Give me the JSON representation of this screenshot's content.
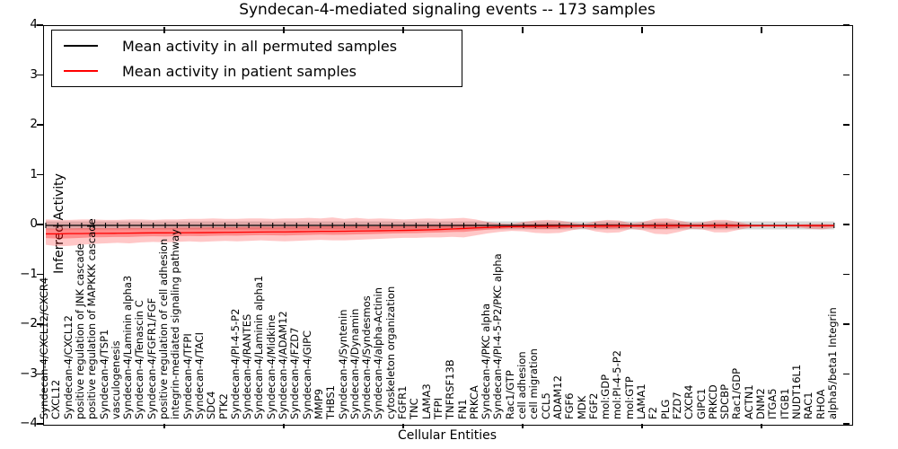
{
  "figure": {
    "title": "Syndecan-4-mediated signaling events -- 173 samples",
    "xlabel": "Cellular Entities",
    "ylabel": "Inferred Activity"
  },
  "legend": {
    "entries": [
      {
        "label": "Mean activity in all permuted samples",
        "color": "#000000"
      },
      {
        "label": "Mean activity in patient samples",
        "color": "#ff0000"
      }
    ]
  },
  "chart_data": {
    "type": "line",
    "title": "Syndecan-4-mediated signaling events -- 173 samples",
    "xlabel": "Cellular Entities",
    "ylabel": "Inferred Activity",
    "ylim": [
      -4,
      4
    ],
    "yticks": [
      {
        "value": 4,
        "label": "4"
      },
      {
        "value": 3,
        "label": "3"
      },
      {
        "value": 2,
        "label": "2"
      },
      {
        "value": 1,
        "label": "1"
      },
      {
        "value": 0,
        "label": "0"
      },
      {
        "value": -1,
        "label": "−1"
      },
      {
        "value": -2,
        "label": "−2"
      },
      {
        "value": -3,
        "label": "−3"
      },
      {
        "value": -4,
        "label": "−4"
      }
    ],
    "xtick_major_indices": [
      10,
      20,
      30,
      40,
      50,
      60
    ],
    "grid": false,
    "legend_position": "upper left",
    "categories": [
      "Syndecan-4/CXCL12/CXCR4",
      "CXCL12",
      "Syndecan-4/CXCL12",
      "positive regulation of JNK cascade",
      "positive regulation of MAPKKK cascade",
      "Syndecan-4/TSP1",
      "vasculogenesis",
      "Syndecan-4/Laminin alpha3",
      "Syndecan-4/Tenascin C",
      "Syndecan-4/FGFR1/FGF",
      "positive regulation of cell adhesion",
      "integrin-mediated signaling pathway",
      "Syndecan-4/TFPI",
      "Syndecan-4/TACI",
      "SDC4",
      "PTK2",
      "Syndecan-4/PI-4-5-P2",
      "Syndecan-4/RANTES",
      "Syndecan-4/Laminin alpha1",
      "Syndecan-4/Midkine",
      "Syndecan-4/ADAM12",
      "Syndecan-4/FZD7",
      "Syndecan-4/GIPC",
      "MMP9",
      "THBS1",
      "Syndecan-4/Syntenin",
      "Syndecan-4/Dynamin",
      "Syndecan-4/Syndesmos",
      "Syndecan-4/alpha-Actinin",
      "cytoskeleton organization",
      "FGFR1",
      "TNC",
      "LAMA3",
      "TFPI",
      "TNFRSF13B",
      "FN1",
      "PRKCA",
      "Syndecan-4/PKC alpha",
      "Syndecan-4/PI-4-5-P2/PKC alpha",
      "Rac1/GTP",
      "cell adhesion",
      "cell migration",
      "CCL5",
      "ADAM12",
      "FGF6",
      "MDK",
      "FGF2",
      "mol:GDP",
      "mol:PI-4-5-P2",
      "mol:GTP",
      "LAMA1",
      "F2",
      "PLG",
      "FZD7",
      "CXCR4",
      "GIPC1",
      "PRKCD",
      "SDCBP",
      "Rac1/GDP",
      "ACTN1",
      "DNM2",
      "ITGA5",
      "ITGB1",
      "NUDT16L1",
      "RAC1",
      "RHOA",
      "alpha5/beta1 Integrin"
    ],
    "series": [
      {
        "name": "Mean activity in all permuted samples",
        "color": "#000000",
        "constant_value": 0,
        "marker": "vertical-dash",
        "band": {
          "upper_constant": 0.08,
          "lower_constant": -0.08,
          "color": "#999999",
          "alpha": 0.38
        }
      },
      {
        "name": "Mean activity in patient samples",
        "color": "#ff0000",
        "values": [
          -0.17,
          -0.17,
          -0.165,
          -0.165,
          -0.16,
          -0.16,
          -0.158,
          -0.155,
          -0.152,
          -0.15,
          -0.15,
          -0.148,
          -0.147,
          -0.145,
          -0.143,
          -0.14,
          -0.138,
          -0.135,
          -0.133,
          -0.13,
          -0.13,
          -0.127,
          -0.124,
          -0.12,
          -0.12,
          -0.117,
          -0.113,
          -0.11,
          -0.107,
          -0.103,
          -0.1,
          -0.096,
          -0.09,
          -0.082,
          -0.072,
          -0.062,
          -0.05,
          -0.04,
          -0.03,
          -0.025,
          -0.02,
          -0.02,
          -0.018,
          -0.016,
          -0.014,
          -0.012,
          -0.012,
          -0.012,
          -0.01,
          -0.01,
          -0.009,
          -0.009,
          -0.008,
          -0.008,
          -0.007,
          -0.007,
          -0.006,
          -0.006,
          -0.005,
          -0.005,
          -0.004,
          -0.004,
          -0.004,
          -0.003,
          -0.003,
          -0.003,
          -0.003
        ],
        "band": {
          "upper": [
            0.12,
            0.11,
            0.11,
            0.12,
            0.12,
            0.11,
            0.11,
            0.12,
            0.12,
            0.11,
            0.12,
            0.12,
            0.13,
            0.13,
            0.14,
            0.13,
            0.13,
            0.14,
            0.14,
            0.13,
            0.14,
            0.14,
            0.15,
            0.14,
            0.16,
            0.13,
            0.15,
            0.13,
            0.14,
            0.13,
            0.12,
            0.13,
            0.14,
            0.13,
            0.14,
            0.15,
            0.12,
            0.07,
            0.04,
            0.03,
            0.07,
            0.1,
            0.11,
            0.1,
            0.06,
            0.03,
            0.08,
            0.11,
            0.1,
            0.04,
            0.07,
            0.13,
            0.14,
            0.1,
            0.05,
            0.06,
            0.11,
            0.11,
            0.07,
            0.02,
            0.015,
            0.015,
            0.015,
            0.02,
            0.03,
            0.03,
            0.02
          ],
          "lower": [
            -0.39,
            -0.42,
            -0.41,
            -0.39,
            -0.37,
            -0.36,
            -0.35,
            -0.36,
            -0.34,
            -0.33,
            -0.34,
            -0.33,
            -0.32,
            -0.33,
            -0.32,
            -0.31,
            -0.32,
            -0.31,
            -0.3,
            -0.31,
            -0.32,
            -0.31,
            -0.3,
            -0.29,
            -0.3,
            -0.3,
            -0.29,
            -0.28,
            -0.27,
            -0.26,
            -0.25,
            -0.25,
            -0.24,
            -0.24,
            -0.23,
            -0.24,
            -0.2,
            -0.16,
            -0.13,
            -0.11,
            -0.12,
            -0.15,
            -0.16,
            -0.15,
            -0.1,
            -0.06,
            -0.12,
            -0.15,
            -0.14,
            -0.07,
            -0.1,
            -0.17,
            -0.18,
            -0.13,
            -0.07,
            -0.08,
            -0.14,
            -0.14,
            -0.09,
            -0.04,
            -0.03,
            -0.03,
            -0.035,
            -0.04,
            -0.07,
            -0.08,
            -0.05
          ],
          "color": "#ff0000",
          "alpha": 0.22,
          "inner_scale": 0.38,
          "inner_alpha": 0.3
        }
      }
    ]
  }
}
